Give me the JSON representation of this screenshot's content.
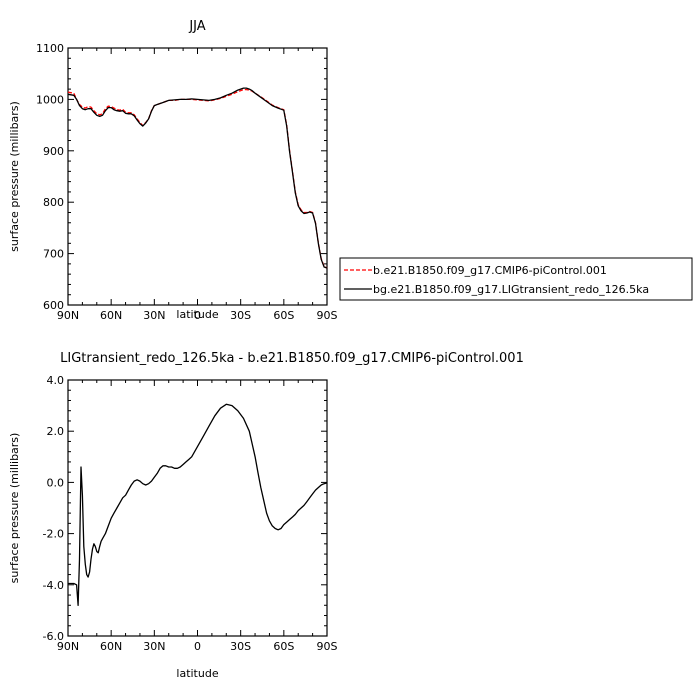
{
  "chart_data": [
    {
      "type": "line",
      "title": "JJA",
      "xlabel": "latitude",
      "ylabel": "surface pressure (millibars)",
      "xlim": [
        90,
        -90
      ],
      "ylim": [
        600,
        1100
      ],
      "x_tick_labels": [
        "90N",
        "60N",
        "30N",
        "0",
        "30S",
        "60S",
        "90S"
      ],
      "x_tick_values": [
        90,
        60,
        30,
        0,
        -30,
        -60,
        -90
      ],
      "y_ticks": [
        600,
        700,
        800,
        900,
        1000,
        1100
      ],
      "legend_position": "right",
      "series": [
        {
          "name": "b.e21.B1850.f09_g17.CMIP6-piControl.001",
          "color": "#ff0000",
          "dash": "dashed",
          "x": [
            90,
            88,
            86,
            84,
            82,
            80,
            78,
            76,
            74,
            72,
            70,
            68,
            66,
            64,
            62,
            60,
            58,
            56,
            54,
            52,
            50,
            48,
            46,
            44,
            42,
            40,
            38,
            36,
            34,
            32,
            30,
            28,
            26,
            24,
            20,
            16,
            12,
            8,
            4,
            0,
            -4,
            -8,
            -12,
            -16,
            -20,
            -24,
            -28,
            -32,
            -34,
            -36,
            -38,
            -40,
            -44,
            -48,
            -52,
            -56,
            -58,
            -60,
            -62,
            -64,
            -66,
            -68,
            -70,
            -72,
            -74,
            -76,
            -78,
            -80,
            -82,
            -84,
            -86,
            -88,
            -90
          ],
          "y": [
            1014,
            1013,
            1012,
            1000,
            990,
            985,
            983,
            986,
            985,
            978,
            972,
            970,
            972,
            982,
            987,
            986,
            983,
            980,
            979,
            981,
            975,
            974,
            974,
            970,
            962,
            955,
            949,
            955,
            962,
            978,
            988,
            990,
            992,
            994,
            998,
            998,
            1000,
            1000,
            1000,
            999,
            998,
            997,
            999,
            1002,
            1006,
            1010,
            1015,
            1019,
            1019,
            1018,
            1016,
            1012,
            1005,
            997,
            989,
            984,
            982,
            980,
            950,
            900,
            860,
            820,
            795,
            785,
            780,
            780,
            782,
            780,
            760,
            720,
            690,
            675,
            672
          ]
        },
        {
          "name": "bg.e21.B1850.f09_g17.LIGtransient_redo_126.5ka",
          "color": "#000000",
          "dash": "solid",
          "x": [
            90,
            88,
            86,
            84,
            82,
            80,
            78,
            76,
            74,
            72,
            70,
            68,
            66,
            64,
            62,
            60,
            58,
            56,
            54,
            52,
            50,
            48,
            46,
            44,
            42,
            40,
            38,
            36,
            34,
            32,
            30,
            28,
            26,
            24,
            20,
            16,
            12,
            8,
            4,
            0,
            -4,
            -8,
            -12,
            -16,
            -20,
            -24,
            -28,
            -32,
            -34,
            -36,
            -38,
            -40,
            -44,
            -48,
            -52,
            -56,
            -58,
            -60,
            -62,
            -64,
            -66,
            -68,
            -70,
            -72,
            -74,
            -76,
            -78,
            -80,
            -82,
            -84,
            -86,
            -88,
            -90
          ],
          "y": [
            1010,
            1009,
            1008,
            1000,
            988,
            982,
            980,
            982,
            982,
            975,
            969,
            967,
            969,
            978,
            984,
            984,
            980,
            978,
            977,
            978,
            973,
            972,
            972,
            968,
            960,
            953,
            948,
            954,
            962,
            977,
            988,
            990,
            992,
            994,
            998,
            999,
            1000,
            1000,
            1001,
            1000,
            999,
            998,
            1000,
            1003,
            1008,
            1012,
            1018,
            1022,
            1022,
            1020,
            1017,
            1012,
            1004,
            996,
            988,
            983,
            981,
            979,
            948,
            898,
            858,
            818,
            793,
            783,
            778,
            779,
            781,
            779,
            759,
            719,
            689,
            674,
            672
          ]
        }
      ]
    },
    {
      "type": "line",
      "title": "LIGtransient_redo_126.5ka - b.e21.B1850.f09_g17.CMIP6-piControl.001",
      "xlabel": "latitude",
      "ylabel": "surface pressure (millibars)",
      "xlim": [
        90,
        -90
      ],
      "ylim": [
        -6.0,
        4.0
      ],
      "x_tick_labels": [
        "90N",
        "60N",
        "30N",
        "0",
        "30S",
        "60S",
        "90S"
      ],
      "x_tick_values": [
        90,
        60,
        30,
        0,
        -30,
        -60,
        -90
      ],
      "y_tick_labels": [
        "-6.0",
        "-4.0",
        "-2.0",
        "0.0",
        "2.0",
        "4.0"
      ],
      "y_ticks": [
        -6,
        -4,
        -2,
        0,
        2,
        4
      ],
      "series": [
        {
          "color": "#000000",
          "x": [
            90,
            88,
            86,
            84,
            83,
            82,
            81,
            80,
            79,
            78,
            77,
            76,
            75,
            74,
            73,
            72,
            71,
            70,
            69,
            68,
            67,
            66,
            64,
            62,
            60,
            58,
            56,
            54,
            52,
            50,
            48,
            46,
            44,
            42,
            40,
            38,
            36,
            34,
            32,
            30,
            28,
            26,
            24,
            22,
            20,
            18,
            16,
            14,
            12,
            10,
            8,
            6,
            4,
            2,
            0,
            -4,
            -8,
            -12,
            -16,
            -20,
            -24,
            -28,
            -32,
            -36,
            -38,
            -40,
            -42,
            -44,
            -46,
            -48,
            -50,
            -52,
            -54,
            -56,
            -58,
            -60,
            -62,
            -64,
            -66,
            -68,
            -70,
            -72,
            -74,
            -76,
            -78,
            -80,
            -82,
            -84,
            -86,
            -88,
            -90
          ],
          "y": [
            -3.95,
            -3.95,
            -3.95,
            -4.0,
            -4.8,
            -3.0,
            0.6,
            -0.5,
            -2.5,
            -3.2,
            -3.6,
            -3.7,
            -3.5,
            -3.0,
            -2.6,
            -2.4,
            -2.5,
            -2.7,
            -2.75,
            -2.5,
            -2.3,
            -2.2,
            -2.0,
            -1.7,
            -1.4,
            -1.2,
            -1.0,
            -0.8,
            -0.6,
            -0.5,
            -0.3,
            -0.1,
            0.05,
            0.1,
            0.05,
            -0.05,
            -0.1,
            -0.05,
            0.05,
            0.2,
            0.35,
            0.55,
            0.65,
            0.65,
            0.6,
            0.6,
            0.55,
            0.55,
            0.6,
            0.7,
            0.8,
            0.9,
            1.0,
            1.2,
            1.4,
            1.8,
            2.2,
            2.6,
            2.9,
            3.05,
            3.0,
            2.8,
            2.5,
            2.0,
            1.5,
            1.0,
            0.4,
            -0.2,
            -0.7,
            -1.2,
            -1.5,
            -1.7,
            -1.8,
            -1.85,
            -1.8,
            -1.65,
            -1.55,
            -1.45,
            -1.35,
            -1.25,
            -1.1,
            -1.0,
            -0.9,
            -0.75,
            -0.6,
            -0.45,
            -0.3,
            -0.2,
            -0.1,
            -0.05,
            -0.02
          ]
        }
      ]
    }
  ]
}
